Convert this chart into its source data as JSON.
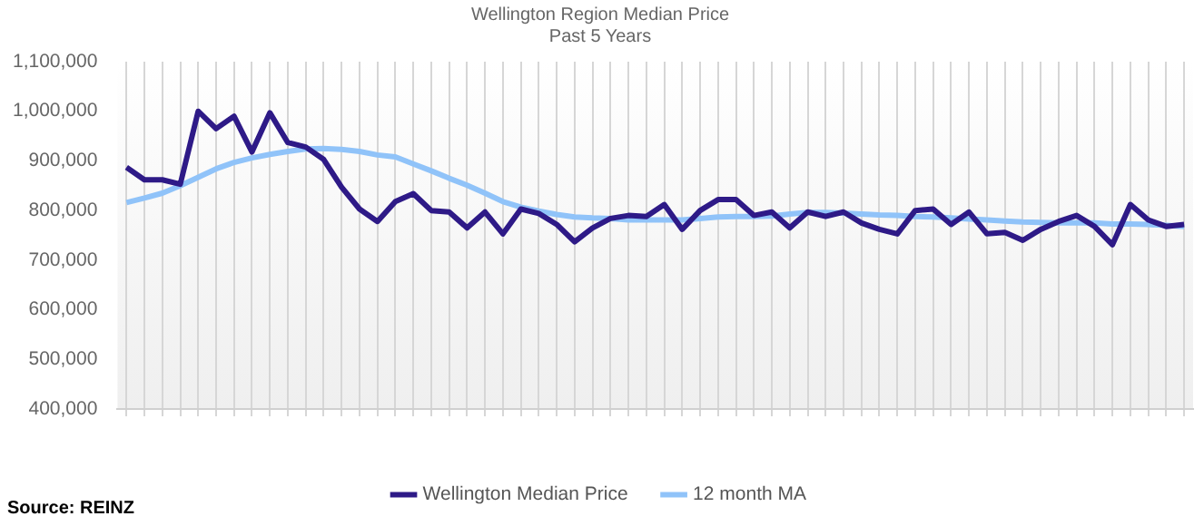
{
  "chart_data": {
    "type": "line",
    "title": "Wellington Region Median Price",
    "subtitle": "Past 5 Years",
    "categories": [
      null,
      null,
      null,
      null,
      null,
      null,
      null,
      null,
      null,
      null,
      null,
      null,
      null,
      null,
      null,
      null,
      null,
      null,
      null,
      null,
      null,
      null,
      null,
      null,
      null,
      null,
      null,
      null,
      null,
      null,
      null,
      null,
      null,
      null,
      null,
      null,
      null,
      null,
      null,
      null,
      null,
      null,
      null,
      null,
      null,
      null,
      null,
      null,
      null,
      null,
      null,
      null,
      null,
      null,
      null,
      null,
      null,
      null,
      null,
      null
    ],
    "series": [
      {
        "name": "Wellington Median Price",
        "color": "#2e1a87",
        "values": [
          887000,
          862000,
          862000,
          853000,
          1000000,
          965000,
          990000,
          918000,
          997000,
          937000,
          928000,
          903000,
          847000,
          803000,
          778000,
          818000,
          834000,
          800000,
          797000,
          765000,
          797000,
          753000,
          803000,
          794000,
          772000,
          737000,
          765000,
          784000,
          790000,
          788000,
          812000,
          762000,
          800000,
          822000,
          822000,
          790000,
          797000,
          765000,
          797000,
          788000,
          797000,
          775000,
          762000,
          753000,
          800000,
          803000,
          772000,
          797000,
          753000,
          756000,
          740000,
          762000,
          778000,
          790000,
          768000,
          731000,
          812000,
          781000,
          768000,
          772000
        ]
      },
      {
        "name": "12 month MA",
        "color": "#90c3f9",
        "values": [
          816000,
          825000,
          835000,
          850000,
          867000,
          884000,
          897000,
          906000,
          913000,
          919000,
          924000,
          925000,
          923000,
          919000,
          912000,
          908000,
          894000,
          880000,
          865000,
          851000,
          835000,
          818000,
          807000,
          799000,
          792000,
          787000,
          785000,
          784000,
          781000,
          781000,
          781000,
          781000,
          784000,
          787000,
          788000,
          788000,
          789000,
          793000,
          796000,
          796000,
          795000,
          793000,
          791000,
          790000,
          788000,
          787000,
          785000,
          783000,
          781000,
          779000,
          777000,
          776000,
          775000,
          775000,
          775000,
          773000,
          773000,
          772000,
          770000,
          768000
        ]
      }
    ],
    "ylim": [
      400000,
      1100000
    ],
    "yticks": [
      {
        "value": 400000,
        "label": "400,000"
      },
      {
        "value": 500000,
        "label": "500,000"
      },
      {
        "value": 600000,
        "label": "600,000"
      },
      {
        "value": 700000,
        "label": "700,000"
      },
      {
        "value": 800000,
        "label": "800,000"
      },
      {
        "value": 900000,
        "label": "900,000"
      },
      {
        "value": 1000000,
        "label": "1,000,000"
      },
      {
        "value": 1100000,
        "label": "1,100,000"
      }
    ],
    "grid": "x",
    "legend": "bottom",
    "marker": "none",
    "line_style": "solid",
    "annotations": [
      "Source: REINZ"
    ]
  }
}
